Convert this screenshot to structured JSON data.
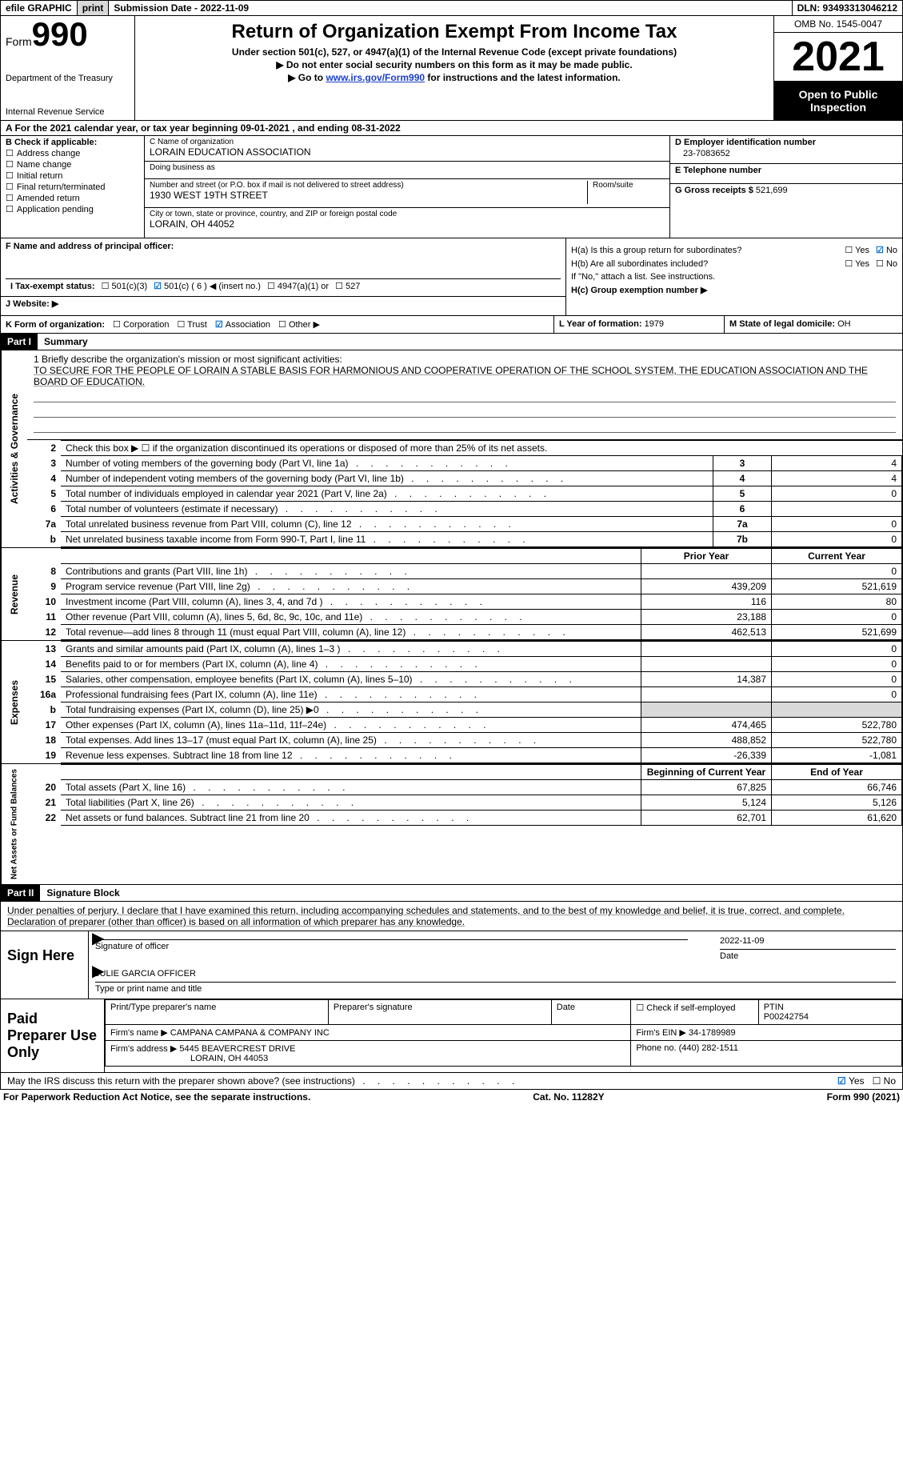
{
  "topbar": {
    "efile": "efile GRAPHIC",
    "print": "print",
    "submission": "Submission Date - 2022-11-09",
    "dln": "DLN: 93493313046212"
  },
  "header": {
    "form_word": "Form",
    "form_no": "990",
    "dept": "Department of the Treasury",
    "irs": "Internal Revenue Service",
    "title": "Return of Organization Exempt From Income Tax",
    "sub1": "Under section 501(c), 527, or 4947(a)(1) of the Internal Revenue Code (except private foundations)",
    "sub2": "Do not enter social security numbers on this form as it may be made public.",
    "sub3_pre": "Go to ",
    "sub3_link": "www.irs.gov/Form990",
    "sub3_post": " for instructions and the latest information.",
    "omb": "OMB No. 1545-0047",
    "year": "2021",
    "inspect": "Open to Public Inspection"
  },
  "row_a": "A For the 2021 calendar year, or tax year beginning 09-01-2021   , and ending 08-31-2022",
  "check_b": {
    "label": "B Check if applicable:",
    "items": [
      "Address change",
      "Name change",
      "Initial return",
      "Final return/terminated",
      "Amended return",
      "Application pending"
    ]
  },
  "block_c": {
    "name_lbl": "C Name of organization",
    "name": "LORAIN EDUCATION ASSOCIATION",
    "dba_lbl": "Doing business as",
    "dba": "",
    "addr_lbl": "Number and street (or P.O. box if mail is not delivered to street address)",
    "room_lbl": "Room/suite",
    "addr": "1930 WEST 19TH STREET",
    "city_lbl": "City or town, state or province, country, and ZIP or foreign postal code",
    "city": "LORAIN, OH  44052"
  },
  "block_d": {
    "ein_lbl": "D Employer identification number",
    "ein": "23-7083652",
    "tel_lbl": "E Telephone number",
    "tel": "",
    "gross_lbl": "G Gross receipts $",
    "gross": "521,699"
  },
  "block_f": {
    "f_lbl": "F  Name and address of principal officer:",
    "f_val": "",
    "ha": "H(a)  Is this a group return for subordinates?",
    "ha_yes": "Yes",
    "ha_no": "No",
    "hb": "H(b)  Are all subordinates included?",
    "hb_yes": "Yes",
    "hb_no": "No",
    "hb_note": "If \"No,\" attach a list. See instructions.",
    "hc": "H(c)  Group exemption number ▶"
  },
  "row_i": {
    "tax_lbl": "I   Tax-exempt status:",
    "o1": "501(c)(3)",
    "o2": "501(c) ( 6 ) ◀ (insert no.)",
    "o3": "4947(a)(1) or",
    "o4": "527"
  },
  "row_j": {
    "lbl": "J   Website: ▶"
  },
  "row_k": {
    "lbl": "K Form of organization:",
    "o1": "Corporation",
    "o2": "Trust",
    "o3": "Association",
    "o4": "Other ▶",
    "l_lbl": "L Year of formation:",
    "l_val": "1979",
    "m_lbl": "M State of legal domicile:",
    "m_val": "OH"
  },
  "part1": {
    "bar": "Part I",
    "title": "Summary"
  },
  "mission": {
    "q": "1   Briefly describe the organization's mission or most significant activities:",
    "txt": "TO SECURE FOR THE PEOPLE OF LORAIN A STABLE BASIS FOR HARMONIOUS AND COOPERATIVE OPERATION OF THE SCHOOL SYSTEM, THE EDUCATION ASSOCIATION AND THE BOARD OF EDUCATION."
  },
  "gov_lines": [
    {
      "n": "2",
      "t": "Check this box ▶ ☐  if the organization discontinued its operations or disposed of more than 25% of its net assets.",
      "num": "",
      "val": ""
    },
    {
      "n": "3",
      "t": "Number of voting members of the governing body (Part VI, line 1a)",
      "num": "3",
      "val": "4"
    },
    {
      "n": "4",
      "t": "Number of independent voting members of the governing body (Part VI, line 1b)",
      "num": "4",
      "val": "4"
    },
    {
      "n": "5",
      "t": "Total number of individuals employed in calendar year 2021 (Part V, line 2a)",
      "num": "5",
      "val": "0"
    },
    {
      "n": "6",
      "t": "Total number of volunteers (estimate if necessary)",
      "num": "6",
      "val": ""
    },
    {
      "n": "7a",
      "t": "Total unrelated business revenue from Part VIII, column (C), line 12",
      "num": "7a",
      "val": "0"
    },
    {
      "n": "b",
      "t": "Net unrelated business taxable income from Form 990-T, Part I, line 11",
      "num": "7b",
      "val": "0"
    }
  ],
  "col_headers": {
    "prior": "Prior Year",
    "current": "Current Year"
  },
  "revenue": [
    {
      "n": "8",
      "t": "Contributions and grants (Part VIII, line 1h)",
      "p": "",
      "c": "0"
    },
    {
      "n": "9",
      "t": "Program service revenue (Part VIII, line 2g)",
      "p": "439,209",
      "c": "521,619"
    },
    {
      "n": "10",
      "t": "Investment income (Part VIII, column (A), lines 3, 4, and 7d )",
      "p": "116",
      "c": "80"
    },
    {
      "n": "11",
      "t": "Other revenue (Part VIII, column (A), lines 5, 6d, 8c, 9c, 10c, and 11e)",
      "p": "23,188",
      "c": "0"
    },
    {
      "n": "12",
      "t": "Total revenue—add lines 8 through 11 (must equal Part VIII, column (A), line 12)",
      "p": "462,513",
      "c": "521,699"
    }
  ],
  "expenses": [
    {
      "n": "13",
      "t": "Grants and similar amounts paid (Part IX, column (A), lines 1–3 )",
      "p": "",
      "c": "0"
    },
    {
      "n": "14",
      "t": "Benefits paid to or for members (Part IX, column (A), line 4)",
      "p": "",
      "c": "0"
    },
    {
      "n": "15",
      "t": "Salaries, other compensation, employee benefits (Part IX, column (A), lines 5–10)",
      "p": "14,387",
      "c": "0"
    },
    {
      "n": "16a",
      "t": "Professional fundraising fees (Part IX, column (A), line 11e)",
      "p": "",
      "c": "0"
    },
    {
      "n": "b",
      "t": "Total fundraising expenses (Part IX, column (D), line 25) ▶0",
      "p": "GRAY",
      "c": "GRAY"
    },
    {
      "n": "17",
      "t": "Other expenses (Part IX, column (A), lines 11a–11d, 11f–24e)",
      "p": "474,465",
      "c": "522,780"
    },
    {
      "n": "18",
      "t": "Total expenses. Add lines 13–17 (must equal Part IX, column (A), line 25)",
      "p": "488,852",
      "c": "522,780"
    },
    {
      "n": "19",
      "t": "Revenue less expenses. Subtract line 18 from line 12",
      "p": "-26,339",
      "c": "-1,081"
    }
  ],
  "net_headers": {
    "begin": "Beginning of Current Year",
    "end": "End of Year"
  },
  "net": [
    {
      "n": "20",
      "t": "Total assets (Part X, line 16)",
      "p": "67,825",
      "c": "66,746"
    },
    {
      "n": "21",
      "t": "Total liabilities (Part X, line 26)",
      "p": "5,124",
      "c": "5,126"
    },
    {
      "n": "22",
      "t": "Net assets or fund balances. Subtract line 21 from line 20",
      "p": "62,701",
      "c": "61,620"
    }
  ],
  "vtabs": {
    "gov": "Activities & Governance",
    "rev": "Revenue",
    "exp": "Expenses",
    "net": "Net Assets or Fund Balances"
  },
  "part2": {
    "bar": "Part II",
    "title": "Signature Block"
  },
  "sig_decl": "Under penalties of perjury, I declare that I have examined this return, including accompanying schedules and statements, and to the best of my knowledge and belief, it is true, correct, and complete. Declaration of preparer (other than officer) is based on all information of which preparer has any knowledge.",
  "sign_here": {
    "lbl": "Sign Here",
    "sig_of": "Signature of officer",
    "date": "2022-11-09",
    "date_lbl": "Date",
    "name": "JULIE GARCIA  OFFICER",
    "name_lbl": "Type or print name and title"
  },
  "paid_prep": {
    "lbl": "Paid Preparer Use Only",
    "c1": "Print/Type preparer's name",
    "c2": "Preparer's signature",
    "c3": "Date",
    "c4_pre": "Check",
    "c4_post": "if self-employed",
    "c5_lbl": "PTIN",
    "c5": "P00242754",
    "firm_name_lbl": "Firm's name    ▶",
    "firm_name": "CAMPANA CAMPANA & COMPANY INC",
    "firm_ein_lbl": "Firm's EIN ▶",
    "firm_ein": "34-1789989",
    "firm_addr_lbl": "Firm's address ▶",
    "firm_addr1": "5445 BEAVERCREST DRIVE",
    "firm_addr2": "LORAIN, OH  44053",
    "phone_lbl": "Phone no.",
    "phone": "(440) 282-1511"
  },
  "may_irs": {
    "t": "May the IRS discuss this return with the preparer shown above? (see instructions)",
    "yes": "Yes",
    "no": "No"
  },
  "footer": {
    "l": "For Paperwork Reduction Act Notice, see the separate instructions.",
    "c": "Cat. No. 11282Y",
    "r": "Form 990 (2021)"
  },
  "colors": {
    "link": "#1a3fcf",
    "btn_bg": "#d9d9d9",
    "black": "#000000",
    "check": "#0066cc"
  }
}
